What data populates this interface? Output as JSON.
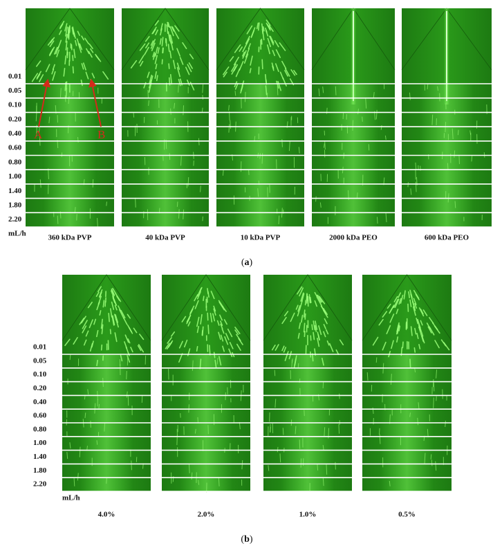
{
  "panel_a": {
    "row_labels": [
      "0.01",
      "0.05",
      "0.10",
      "0.20",
      "0.40",
      "0.60",
      "0.80",
      "1.00",
      "1.40",
      "1.80",
      "2.20"
    ],
    "unit": "mL/h",
    "columns": [
      "360 kDa PVP",
      "40 kDa PVP",
      "10 kDa PVP",
      "2000 kDa PEO",
      "600 kDa PEO"
    ],
    "annotations": [
      "A",
      "B"
    ],
    "caption": "a"
  },
  "panel_b": {
    "row_labels": [
      "0.01",
      "0.05",
      "0.10",
      "0.20",
      "0.40",
      "0.60",
      "0.80",
      "1.00",
      "1.40",
      "1.80",
      "2.20"
    ],
    "unit": "mL/h",
    "columns": [
      "4.0%",
      "2.0%",
      "1.0%",
      "0.5%"
    ],
    "caption": "b"
  }
}
